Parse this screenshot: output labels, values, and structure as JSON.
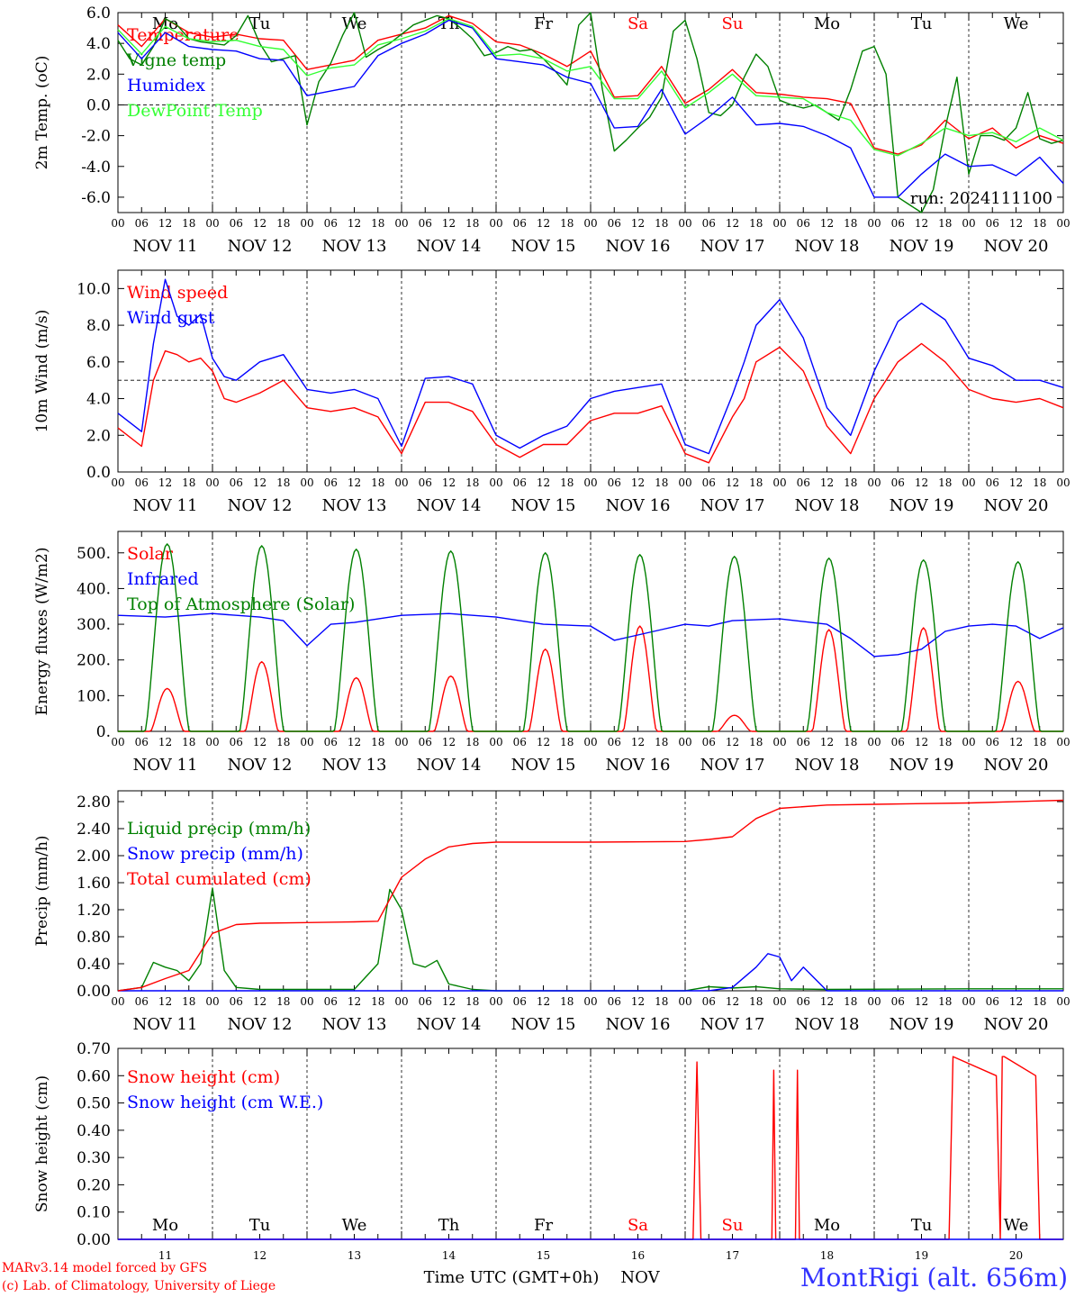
{
  "run_label": "run: 2024111100",
  "credit_line1": "MARv3.14 model forced by GFS",
  "credit_line2": "(c) Lab. of Climatology, University of Liege",
  "station": "MontRigi (alt. 656m)",
  "time_axis": {
    "hour_ticks": [
      "00",
      "06",
      "12",
      "18"
    ],
    "final_tick": "00",
    "day_labels": [
      "NOV 11",
      "NOV 12",
      "NOV 13",
      "NOV 14",
      "NOV 15",
      "NOV 16",
      "NOV 17",
      "NOV 18",
      "NOV 19",
      "NOV 20"
    ],
    "weekdays": [
      "Mo",
      "Tu",
      "We",
      "Th",
      "Fr",
      "Sa",
      "Su",
      "Mo",
      "Tu",
      "We"
    ],
    "weekday_colors": [
      "#000000",
      "#000000",
      "#000000",
      "#000000",
      "#000000",
      "#ff0000",
      "#ff0000",
      "#000000",
      "#000000",
      "#000000"
    ],
    "day_numbers": [
      "11",
      "12",
      "13",
      "14",
      "15",
      "16",
      "17",
      "18",
      "19",
      "20"
    ],
    "bottom_label": "Time UTC (GMT+0h)",
    "month_label": "NOV",
    "x_range_hours": [
      0,
      240
    ]
  },
  "chart_data": [
    {
      "type": "line",
      "ylabel": "2m Temp. (oC)",
      "ylim": [
        -7,
        6
      ],
      "yticks": [
        "6.0",
        "4.0",
        "2.0",
        "0.0",
        "-2.0",
        "-4.0",
        "-6.0"
      ],
      "ytick_values": [
        6,
        4,
        2,
        0,
        -2,
        -4,
        -6
      ],
      "reference_line": 0,
      "legend_placement": "left",
      "series": [
        {
          "name": "Temperature",
          "color": "#ff0000",
          "x": [
            0,
            6,
            12,
            18,
            24,
            30,
            36,
            42,
            48,
            54,
            60,
            66,
            72,
            78,
            84,
            90,
            96,
            102,
            108,
            114,
            120,
            126,
            132,
            138,
            144,
            150,
            156,
            162,
            168,
            174,
            180,
            186,
            192,
            198,
            204,
            210,
            216,
            222,
            228,
            234,
            240
          ],
          "y": [
            5.2,
            3.8,
            5.6,
            4.7,
            4.4,
            4.6,
            4.3,
            4.2,
            2.3,
            2.6,
            2.9,
            4.2,
            4.6,
            5.0,
            5.8,
            5.3,
            4.1,
            3.9,
            3.3,
            2.5,
            3.5,
            0.5,
            0.6,
            2.5,
            0.1,
            1.0,
            2.3,
            0.8,
            0.7,
            0.5,
            0.4,
            0.1,
            -2.8,
            -3.2,
            -2.6,
            -1.0,
            -2.2,
            -1.5,
            -2.8,
            -2.0,
            -2.5
          ]
        },
        {
          "name": "Vigne temp",
          "color": "#008000",
          "x": [
            0,
            3,
            6,
            9,
            12,
            15,
            18,
            21,
            24,
            27,
            30,
            33,
            36,
            39,
            42,
            45,
            48,
            51,
            54,
            57,
            60,
            63,
            66,
            69,
            72,
            75,
            78,
            81,
            84,
            87,
            90,
            93,
            96,
            99,
            102,
            105,
            108,
            111,
            114,
            117,
            120,
            123,
            126,
            129,
            132,
            135,
            138,
            141,
            144,
            147,
            150,
            153,
            156,
            159,
            162,
            165,
            168,
            171,
            174,
            177,
            180,
            183,
            186,
            189,
            192,
            195,
            198,
            201,
            204,
            207,
            210,
            213,
            216,
            219,
            222,
            225,
            228,
            231,
            234,
            237,
            240
          ],
          "y": [
            4.2,
            3.0,
            2.6,
            3.8,
            5.6,
            5.2,
            4.3,
            4.1,
            4.0,
            3.9,
            4.5,
            5.8,
            4.0,
            2.8,
            3.0,
            3.2,
            -1.3,
            1.5,
            2.7,
            4.5,
            6.2,
            3.1,
            3.6,
            4.0,
            4.6,
            5.2,
            5.5,
            5.8,
            5.6,
            5.0,
            4.3,
            3.2,
            3.4,
            3.8,
            3.5,
            3.6,
            3.0,
            2.2,
            1.3,
            5.2,
            6.5,
            1.0,
            -3.0,
            -2.3,
            -1.5,
            -0.8,
            0.5,
            4.8,
            5.5,
            3.0,
            -0.5,
            -0.7,
            0.0,
            1.8,
            3.3,
            2.5,
            0.3,
            0.0,
            -0.2,
            0.0,
            -0.5,
            -1.0,
            1.0,
            3.5,
            3.8,
            2.0,
            -6.0,
            -6.5,
            -7.0,
            -5.5,
            -1.5,
            1.8,
            -4.5,
            -2.0,
            -2.0,
            -2.3,
            -1.5,
            0.8,
            -2.2,
            -2.5,
            -2.3
          ]
        },
        {
          "name": "Humidex",
          "color": "#0000ff",
          "x": [
            0,
            6,
            12,
            18,
            24,
            30,
            36,
            42,
            48,
            54,
            60,
            66,
            72,
            78,
            84,
            90,
            96,
            102,
            108,
            114,
            120,
            126,
            132,
            138,
            144,
            150,
            156,
            162,
            168,
            174,
            180,
            186,
            192,
            198,
            204,
            210,
            216,
            222,
            228,
            234,
            240
          ],
          "y": [
            4.7,
            3.0,
            4.7,
            3.8,
            3.6,
            3.5,
            3.0,
            2.9,
            0.6,
            0.9,
            1.2,
            3.2,
            4.0,
            4.6,
            5.5,
            5.0,
            3.0,
            2.8,
            2.6,
            1.8,
            1.4,
            -1.5,
            -1.4,
            1.0,
            -1.9,
            -0.8,
            0.5,
            -1.3,
            -1.2,
            -1.4,
            -2.0,
            -2.8,
            -6.0,
            -6.0,
            -4.5,
            -3.2,
            -4.0,
            -3.9,
            -4.6,
            -3.4,
            -5.1
          ]
        },
        {
          "name": "DewPoint Temp",
          "color": "#33ff33",
          "x": [
            0,
            6,
            12,
            18,
            24,
            30,
            36,
            42,
            48,
            54,
            60,
            66,
            72,
            78,
            84,
            90,
            96,
            102,
            108,
            114,
            120,
            126,
            132,
            138,
            144,
            150,
            156,
            162,
            168,
            174,
            180,
            186,
            192,
            198,
            204,
            210,
            216,
            222,
            228,
            234,
            240
          ],
          "y": [
            4.9,
            3.3,
            5.1,
            4.3,
            4.1,
            4.2,
            3.8,
            3.6,
            1.9,
            2.4,
            2.6,
            3.9,
            4.3,
            4.8,
            5.6,
            5.1,
            3.2,
            3.3,
            3.0,
            2.2,
            2.5,
            0.4,
            0.4,
            2.2,
            -0.2,
            0.8,
            2.0,
            0.6,
            0.5,
            0.4,
            -0.5,
            -1.0,
            -2.9,
            -3.3,
            -2.5,
            -1.5,
            -2.0,
            -1.8,
            -2.4,
            -1.5,
            -2.3
          ]
        }
      ]
    },
    {
      "type": "line",
      "ylabel": "10m Wind (m/s)",
      "ylim": [
        0,
        11
      ],
      "yticks": [
        "10.0",
        "8.0",
        "6.0",
        "4.0",
        "2.0",
        "0.0"
      ],
      "ytick_values": [
        10,
        8,
        6,
        4,
        2,
        0
      ],
      "reference_line": 5,
      "legend_placement": "left",
      "series": [
        {
          "name": "Wind speed",
          "color": "#ff0000",
          "x": [
            0,
            6,
            9,
            12,
            15,
            18,
            21,
            24,
            27,
            30,
            36,
            42,
            48,
            54,
            60,
            66,
            72,
            78,
            84,
            90,
            96,
            102,
            108,
            114,
            120,
            126,
            132,
            138,
            144,
            150,
            156,
            159,
            162,
            168,
            174,
            180,
            186,
            192,
            198,
            204,
            210,
            216,
            222,
            228,
            234,
            240
          ],
          "y": [
            2.4,
            1.4,
            5.0,
            6.6,
            6.4,
            6.0,
            6.2,
            5.5,
            4.0,
            3.8,
            4.3,
            5.0,
            3.5,
            3.3,
            3.5,
            3.0,
            1.0,
            3.8,
            3.8,
            3.3,
            1.5,
            0.8,
            1.5,
            1.5,
            2.8,
            3.2,
            3.2,
            3.6,
            1.0,
            0.5,
            3.0,
            4.0,
            6.0,
            6.8,
            5.5,
            2.5,
            1.0,
            4.0,
            6.0,
            7.0,
            6.0,
            4.5,
            4.0,
            3.8,
            4.0,
            3.5
          ]
        },
        {
          "name": "Wind gust",
          "color": "#0000ff",
          "x": [
            0,
            6,
            9,
            12,
            15,
            18,
            21,
            24,
            27,
            30,
            36,
            42,
            48,
            54,
            60,
            66,
            72,
            78,
            84,
            90,
            96,
            102,
            108,
            114,
            120,
            126,
            132,
            138,
            144,
            150,
            156,
            159,
            162,
            168,
            174,
            180,
            186,
            192,
            198,
            204,
            210,
            216,
            222,
            228,
            234,
            240
          ],
          "y": [
            3.2,
            2.2,
            7.0,
            10.5,
            8.5,
            8.0,
            8.6,
            6.2,
            5.2,
            5.0,
            6.0,
            6.4,
            4.5,
            4.3,
            4.5,
            4.0,
            1.4,
            5.1,
            5.2,
            4.8,
            2.0,
            1.3,
            2.0,
            2.5,
            4.0,
            4.4,
            4.6,
            4.8,
            1.5,
            1.0,
            4.2,
            6.0,
            8.0,
            9.4,
            7.3,
            3.5,
            2.0,
            5.5,
            8.2,
            9.2,
            8.3,
            6.2,
            5.8,
            5.0,
            5.0,
            4.6
          ]
        }
      ]
    },
    {
      "type": "line",
      "ylabel": "Energy fluxes (W/m2)",
      "ylim": [
        0,
        560
      ],
      "yticks": [
        "500.",
        "400.",
        "300.",
        "200.",
        "100.",
        "0."
      ],
      "ytick_values": [
        500,
        400,
        300,
        200,
        100,
        0
      ],
      "legend_placement": "left",
      "series": [
        {
          "name": "Solar",
          "color": "#ff0000",
          "daily_peaks": [
            120,
            195,
            150,
            155,
            230,
            295,
            45,
            285,
            290,
            140
          ]
        },
        {
          "name": "Infrared",
          "color": "#0000ff",
          "x": [
            0,
            12,
            24,
            36,
            42,
            48,
            54,
            60,
            72,
            84,
            96,
            108,
            120,
            126,
            132,
            138,
            144,
            150,
            156,
            168,
            180,
            186,
            192,
            198,
            204,
            210,
            216,
            222,
            228,
            234,
            240
          ],
          "y": [
            325,
            320,
            330,
            320,
            310,
            240,
            300,
            305,
            325,
            330,
            320,
            300,
            295,
            255,
            270,
            285,
            300,
            295,
            310,
            315,
            300,
            260,
            210,
            215,
            230,
            280,
            295,
            300,
            295,
            260,
            290
          ]
        },
        {
          "name": "Top of Atmosphere (Solar)",
          "color": "#008000",
          "daily_peaks": [
            525,
            520,
            510,
            505,
            500,
            495,
            490,
            485,
            480,
            475
          ]
        }
      ]
    },
    {
      "type": "line",
      "ylabel": "Precip (mm/h)",
      "ylim": [
        0,
        2.96
      ],
      "yticks": [
        "2.80",
        "2.40",
        "2.00",
        "1.60",
        "1.20",
        "0.80",
        "0.40",
        "0.00"
      ],
      "ytick_values": [
        2.8,
        2.4,
        2.0,
        1.6,
        1.2,
        0.8,
        0.4,
        0
      ],
      "legend_placement": "left",
      "series": [
        {
          "name": "Liquid precip (mm/h)",
          "color": "#008000",
          "x": [
            0,
            6,
            9,
            12,
            15,
            18,
            21,
            24,
            27,
            30,
            36,
            60,
            66,
            69,
            72,
            75,
            78,
            81,
            84,
            90,
            96,
            144,
            150,
            156,
            162,
            168,
            180,
            216,
            240
          ],
          "y": [
            0,
            0.05,
            0.42,
            0.35,
            0.3,
            0.15,
            0.4,
            1.52,
            0.3,
            0.05,
            0.02,
            0.02,
            0.4,
            1.5,
            1.2,
            0.4,
            0.35,
            0.45,
            0.1,
            0.02,
            0,
            0,
            0.06,
            0.04,
            0.06,
            0.03,
            0.02,
            0.03,
            0.03
          ]
        },
        {
          "name": "Snow precip (mm/h)",
          "color": "#0000ff",
          "x": [
            0,
            150,
            156,
            162,
            165,
            168,
            171,
            174,
            180,
            240
          ],
          "y": [
            0,
            0,
            0.05,
            0.35,
            0.55,
            0.5,
            0.15,
            0.35,
            0,
            0
          ]
        },
        {
          "name": "Total cumulated (cm)",
          "color": "#ff0000",
          "x": [
            0,
            6,
            12,
            18,
            24,
            30,
            36,
            48,
            60,
            66,
            72,
            78,
            84,
            90,
            96,
            120,
            144,
            150,
            156,
            162,
            168,
            180,
            192,
            216,
            240
          ],
          "y": [
            0,
            0.05,
            0.18,
            0.3,
            0.85,
            0.98,
            1.0,
            1.01,
            1.02,
            1.03,
            1.68,
            1.95,
            2.13,
            2.18,
            2.2,
            2.2,
            2.21,
            2.24,
            2.28,
            2.55,
            2.7,
            2.75,
            2.76,
            2.78,
            2.82
          ]
        }
      ]
    },
    {
      "type": "line",
      "ylabel": "Snow height (cm)",
      "ylim": [
        0,
        0.7
      ],
      "yticks": [
        "0.70",
        "0.60",
        "0.50",
        "0.40",
        "0.30",
        "0.20",
        "0.10",
        "0.00"
      ],
      "ytick_values": [
        0.7,
        0.6,
        0.5,
        0.4,
        0.3,
        0.2,
        0.1,
        0
      ],
      "legend_placement": "top-left",
      "series": [
        {
          "name": "Snow height (cm)",
          "color": "#ff0000",
          "x": [
            0,
            146,
            147,
            148,
            166,
            166.5,
            167,
            172,
            172.5,
            173,
            211,
            212,
            223,
            224,
            224.5,
            225,
            233,
            234,
            240
          ],
          "y": [
            0,
            0,
            0.65,
            0,
            0,
            0.62,
            0,
            0,
            0.62,
            0,
            0,
            0.67,
            0.6,
            0,
            0.67,
            0.67,
            0.6,
            0,
            0
          ]
        },
        {
          "name": "Snow height (cm W.E.)",
          "color": "#0000ff",
          "x": [
            0,
            240
          ],
          "y": [
            0,
            0
          ]
        }
      ]
    }
  ]
}
